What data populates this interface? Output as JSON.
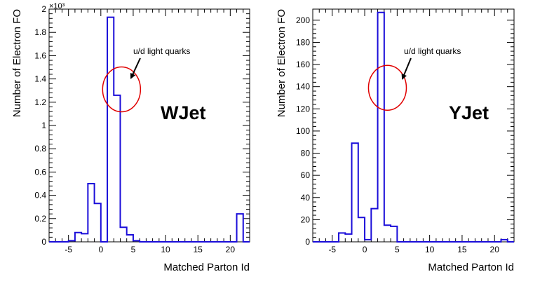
{
  "chart_data": [
    {
      "type": "histogram",
      "xlabel": "Matched Parton Id",
      "ylabel": "Number of Electron FO",
      "xlim": [
        -8,
        23
      ],
      "ylim": [
        0,
        2000
      ],
      "y_exponent_label": "×10³",
      "x_ticks": [
        -5,
        0,
        5,
        10,
        15,
        20
      ],
      "x_tick_labels": [
        "-5",
        "0",
        "5",
        "10",
        "15",
        "20"
      ],
      "y_ticks": [
        0,
        200,
        400,
        600,
        800,
        1000,
        1200,
        1400,
        1600,
        1800,
        2000
      ],
      "y_tick_labels": [
        "0",
        "0.2",
        "0.4",
        "0.6",
        "0.8",
        "1",
        "1.2",
        "1.4",
        "1.6",
        "1.8",
        "2"
      ],
      "bin_edges": [
        -8,
        -7,
        -6,
        -5,
        -4,
        -3,
        -2,
        -1,
        0,
        1,
        2,
        3,
        4,
        5,
        6,
        7,
        8,
        9,
        10,
        11,
        12,
        13,
        14,
        15,
        16,
        17,
        18,
        19,
        20,
        21,
        22,
        23
      ],
      "counts": [
        0,
        0,
        0,
        10,
        80,
        70,
        500,
        330,
        0,
        1930,
        1260,
        125,
        60,
        10,
        0,
        0,
        0,
        0,
        0,
        0,
        0,
        0,
        0,
        0,
        0,
        0,
        0,
        0,
        0,
        240,
        0
      ],
      "color": "#1a0dd9",
      "annotation": {
        "text": "u/d light quarks",
        "circle_center_data": [
          3.2,
          1310
        ],
        "circle_color": "#e00000"
      },
      "big_label": "WJet"
    },
    {
      "type": "histogram",
      "xlabel": "Matched Parton Id",
      "ylabel": "Number of Electron FO",
      "xlim": [
        -8,
        23
      ],
      "ylim": [
        0,
        210
      ],
      "y_exponent_label": "",
      "x_ticks": [
        -5,
        0,
        5,
        10,
        15,
        20
      ],
      "x_tick_labels": [
        "-5",
        "0",
        "5",
        "10",
        "15",
        "20"
      ],
      "y_ticks": [
        0,
        20,
        40,
        60,
        80,
        100,
        120,
        140,
        160,
        180,
        200
      ],
      "y_tick_labels": [
        "0",
        "20",
        "40",
        "60",
        "80",
        "100",
        "120",
        "140",
        "160",
        "180",
        "200"
      ],
      "bin_edges": [
        -8,
        -7,
        -6,
        -5,
        -4,
        -3,
        -2,
        -1,
        0,
        1,
        2,
        3,
        4,
        5,
        6,
        7,
        8,
        9,
        10,
        11,
        12,
        13,
        14,
        15,
        16,
        17,
        18,
        19,
        20,
        21,
        22,
        23
      ],
      "counts": [
        0,
        0,
        0,
        0,
        8,
        7,
        89,
        22,
        2,
        30,
        207,
        15,
        14,
        0,
        0,
        0,
        0,
        0,
        0,
        0,
        0,
        0,
        0,
        0,
        0,
        0,
        0,
        0,
        0,
        2,
        0
      ],
      "color": "#1a0dd9",
      "annotation": {
        "text": "u/d light quarks",
        "circle_center_data": [
          3.5,
          139
        ],
        "circle_color": "#e00000"
      },
      "big_label": "YJet"
    }
  ]
}
